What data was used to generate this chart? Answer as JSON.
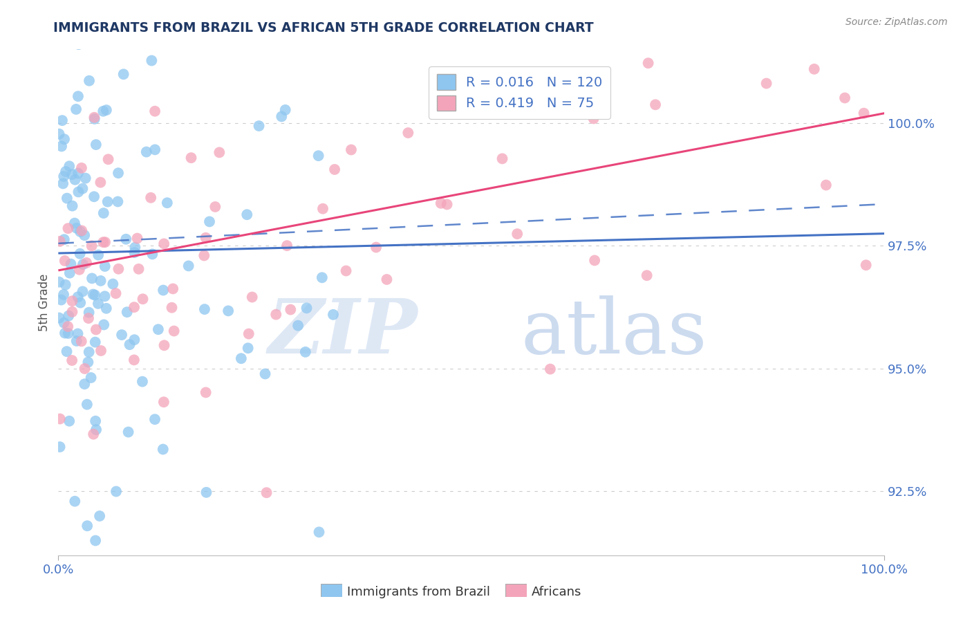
{
  "title": "IMMIGRANTS FROM BRAZIL VS AFRICAN 5TH GRADE CORRELATION CHART",
  "source_text": "Source: ZipAtlas.com",
  "ylabel": "5th Grade",
  "xlim": [
    0.0,
    100.0
  ],
  "ylim": [
    91.2,
    101.5
  ],
  "yticks": [
    92.5,
    95.0,
    97.5,
    100.0
  ],
  "ytick_labels": [
    "92.5%",
    "95.0%",
    "97.5%",
    "100.0%"
  ],
  "xtick_labels": [
    "0.0%",
    "100.0%"
  ],
  "brazil_color": "#8EC6F0",
  "african_color": "#F4A4BA",
  "brazil_R": 0.016,
  "brazil_N": 120,
  "african_R": 0.419,
  "african_N": 75,
  "legend_label_brazil": "Immigrants from Brazil",
  "legend_label_african": "Africans",
  "title_color": "#1F3864",
  "axis_color": "#4472C4",
  "trend_blue": "#4472C4",
  "trend_pink": "#E8457A",
  "grid_color": "#CCCCCC",
  "brazil_trend_start_y": 97.35,
  "brazil_trend_end_y": 97.75,
  "brazil_dash_start_y": 97.55,
  "brazil_dash_end_y": 98.35,
  "african_trend_start_y": 97.0,
  "african_trend_end_y": 100.2
}
